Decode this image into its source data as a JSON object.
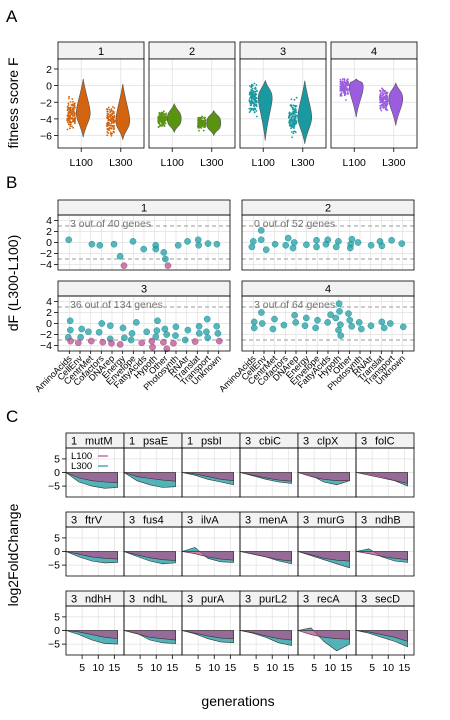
{
  "panel_labels": [
    "A",
    "B",
    "C"
  ],
  "colors": {
    "L100": "#b34d8a",
    "L300": "#1a9aa0",
    "cluster": [
      "#d2640f",
      "#5a9212",
      "#1a9aa0",
      "#9b5ce0"
    ],
    "strip_bg": "#f2f2f2",
    "grid": "#e0e0e0",
    "dashed": "#999999"
  },
  "chart_data": [
    {
      "type": "violin",
      "ylabel": "fitness score F",
      "x_categories": [
        "L100",
        "L300"
      ],
      "x_tick_labels": [
        "L100",
        "L300"
      ],
      "ylim": [
        -7.5,
        3.2
      ],
      "yticks": [
        2,
        0,
        -2,
        -4,
        -6
      ],
      "panels": [
        {
          "cluster": "1",
          "L100_median": -3.3,
          "L300_median": -4.2,
          "L100_range": [
            -6.2,
            0.8
          ],
          "L300_range": [
            -6.5,
            0.2
          ]
        },
        {
          "cluster": "2",
          "L100_median": -4.0,
          "L300_median": -4.5,
          "L100_range": [
            -5.6,
            -2.2
          ],
          "L300_range": [
            -6.0,
            -3.0
          ]
        },
        {
          "cluster": "3",
          "L100_median": -1.5,
          "L300_median": -3.8,
          "L100_range": [
            -6.6,
            0.6
          ],
          "L300_range": [
            -7.0,
            0.6
          ]
        },
        {
          "cluster": "4",
          "L100_median": -0.2,
          "L300_median": -1.6,
          "L100_range": [
            -3.8,
            0.8
          ],
          "L300_range": [
            -4.8,
            0.3
          ]
        }
      ]
    },
    {
      "type": "scatter",
      "ylabel": "dF (L300-L100)",
      "categories": [
        "AminoAcids",
        "CellEnv",
        "CentrMet",
        "Cofactors",
        "DNArep",
        "Energy",
        "Envelope",
        "FattyAcids",
        "Hypoth",
        "Other",
        "Photosynth",
        "RNAtr",
        "Translat",
        "Transport",
        "Unknown"
      ],
      "ylim": [
        -5,
        5
      ],
      "yticks": [
        4,
        2,
        0,
        -2,
        -4
      ],
      "threshold": [
        3,
        -3
      ],
      "panels": [
        {
          "cluster": "1",
          "annotation": "3 out of 40 genes",
          "points": [
            [
              0,
              0.5
            ],
            [
              2,
              -0.3
            ],
            [
              3,
              -0.5
            ],
            [
              4,
              -0.3
            ],
            [
              5,
              -2.5
            ],
            [
              5,
              -4.2
            ],
            [
              6,
              0.2
            ],
            [
              7,
              -1.2
            ],
            [
              8,
              -0.5
            ],
            [
              8,
              -1.2
            ],
            [
              9,
              -1.8
            ],
            [
              9,
              -3.0
            ],
            [
              9,
              -4.2
            ],
            [
              10,
              -0.5
            ],
            [
              11,
              0.2
            ],
            [
              12,
              0.5
            ],
            [
              12,
              -0.5
            ],
            [
              13,
              -0.2
            ],
            [
              14,
              -0.3
            ]
          ]
        },
        {
          "cluster": "2",
          "annotation": "0 out of 52 genes",
          "points": [
            [
              0,
              -0.8
            ],
            [
              0,
              0.2
            ],
            [
              1,
              2.2
            ],
            [
              1,
              -1.3
            ],
            [
              1,
              0.5
            ],
            [
              2,
              -0.3
            ],
            [
              3,
              0.8
            ],
            [
              3,
              -0.5
            ],
            [
              4,
              0.0
            ],
            [
              4,
              -1.0
            ],
            [
              5,
              -0.4
            ],
            [
              6,
              0.4
            ],
            [
              6,
              -0.8
            ],
            [
              7,
              -0.3
            ],
            [
              7,
              0.5
            ],
            [
              8,
              0.2
            ],
            [
              8,
              -0.8
            ],
            [
              9,
              0.6
            ],
            [
              9,
              -0.3
            ],
            [
              9,
              -1.0
            ],
            [
              10,
              0.0
            ],
            [
              11,
              -0.5
            ],
            [
              12,
              0.2
            ],
            [
              12,
              -0.6
            ],
            [
              13,
              0.4
            ],
            [
              14,
              -0.2
            ]
          ]
        },
        {
          "cluster": "3",
          "annotation": "36 out of 134 genes",
          "points": [
            [
              0,
              0.5
            ],
            [
              0,
              -1.2
            ],
            [
              0,
              -2.5
            ],
            [
              0,
              -3.2
            ],
            [
              1,
              -1.0
            ],
            [
              1,
              -2.5
            ],
            [
              1,
              -3.5
            ],
            [
              2,
              -1.5
            ],
            [
              2,
              -3.2
            ],
            [
              3,
              0.0
            ],
            [
              3,
              -1.6
            ],
            [
              3,
              -3.4
            ],
            [
              4,
              -0.4
            ],
            [
              4,
              -2.8
            ],
            [
              4,
              -3.6
            ],
            [
              5,
              -0.8
            ],
            [
              5,
              -2.6
            ],
            [
              5,
              -3.8
            ],
            [
              6,
              0.2
            ],
            [
              6,
              -1.8
            ],
            [
              6,
              -3.0
            ],
            [
              7,
              -1.5
            ],
            [
              7,
              -3.5
            ],
            [
              8,
              0.5
            ],
            [
              8,
              -1.3
            ],
            [
              8,
              -2.4
            ],
            [
              8,
              -3.2
            ],
            [
              8,
              -4.3
            ],
            [
              9,
              -1.0
            ],
            [
              9,
              -2.0
            ],
            [
              9,
              -3.4
            ],
            [
              9,
              -4.6
            ],
            [
              10,
              -0.6
            ],
            [
              10,
              -2.2
            ],
            [
              10,
              -3.6
            ],
            [
              11,
              -1.2
            ],
            [
              11,
              -3.0
            ],
            [
              12,
              -0.5
            ],
            [
              12,
              -1.8
            ],
            [
              12,
              -3.3
            ],
            [
              13,
              0.8
            ],
            [
              13,
              -1.5
            ],
            [
              13,
              -2.6
            ],
            [
              14,
              -0.5
            ],
            [
              14,
              -1.8
            ],
            [
              14,
              -3.2
            ]
          ]
        },
        {
          "cluster": "4",
          "annotation": "3 out of 64 genes",
          "points": [
            [
              0,
              0.3
            ],
            [
              0,
              -0.8
            ],
            [
              1,
              2.0
            ],
            [
              1,
              0.0
            ],
            [
              2,
              0.8
            ],
            [
              2,
              -1.0
            ],
            [
              3,
              -0.3
            ],
            [
              4,
              1.5
            ],
            [
              4,
              0.2
            ],
            [
              5,
              -0.4
            ],
            [
              5,
              1.0
            ],
            [
              6,
              -0.8
            ],
            [
              6,
              0.6
            ],
            [
              7,
              0.2
            ],
            [
              7,
              1.6
            ],
            [
              8,
              3.6
            ],
            [
              8,
              2.2
            ],
            [
              8,
              1.0
            ],
            [
              8,
              -0.2
            ],
            [
              8,
              -1.2
            ],
            [
              8,
              -2.2
            ],
            [
              9,
              0.6
            ],
            [
              9,
              1.8
            ],
            [
              9,
              -0.5
            ],
            [
              10,
              0.2
            ],
            [
              10,
              -1.0
            ],
            [
              11,
              -0.4
            ],
            [
              12,
              0.3
            ],
            [
              12,
              -0.8
            ],
            [
              13,
              0.0
            ],
            [
              14,
              -0.6
            ]
          ]
        }
      ]
    },
    {
      "type": "area",
      "xlabel": "generations",
      "ylabel": "log2FoldChange",
      "legend": [
        "L100",
        "L300"
      ],
      "xlim": [
        0,
        18
      ],
      "xticks": [
        5,
        10,
        15
      ],
      "ylim": [
        -9,
        9
      ],
      "yticks": [
        5,
        0,
        -5
      ],
      "panels": [
        {
          "cluster": "1",
          "gene": "mutM",
          "L100": [
            0,
            -2.0,
            -3.0,
            -3.5,
            -3.8
          ],
          "L300": [
            0,
            -3.5,
            -5.0,
            -5.8,
            -5.5
          ]
        },
        {
          "cluster": "1",
          "gene": "psaE",
          "L100": [
            0,
            -1.5,
            -2.2,
            -2.8,
            -3.2
          ],
          "L300": [
            0,
            -3.0,
            -4.5,
            -5.5,
            -5.2
          ]
        },
        {
          "cluster": "1",
          "gene": "psbI",
          "L100": [
            0,
            -0.5,
            -1.5,
            -2.5,
            -3.0
          ],
          "L300": [
            0,
            -1.0,
            -2.5,
            -3.5,
            -4.5
          ]
        },
        {
          "cluster": "3",
          "gene": "cbiC",
          "L100": [
            0,
            -1.0,
            -2.0,
            -2.8,
            -3.2
          ],
          "L300": [
            0,
            -1.2,
            -2.5,
            -3.5,
            -4.0
          ]
        },
        {
          "cluster": "3",
          "gene": "clpX",
          "L100": [
            0,
            -1.5,
            -2.5,
            -3.0,
            -3.0
          ],
          "L300": [
            0,
            -1.0,
            -3.5,
            -4.5,
            -3.0
          ]
        },
        {
          "cluster": "3",
          "gene": "folC",
          "L100": [
            0,
            -1.0,
            -2.0,
            -3.0,
            -4.0
          ],
          "L300": [
            0,
            -0.5,
            -1.5,
            -3.0,
            -5.0
          ]
        },
        {
          "cluster": "3",
          "gene": "ftrV",
          "L100": [
            0,
            -1.0,
            -2.0,
            -2.5,
            -2.8
          ],
          "L300": [
            0,
            -2.0,
            -3.5,
            -4.2,
            -4.0
          ]
        },
        {
          "cluster": "3",
          "gene": "fus4",
          "L100": [
            0,
            -1.2,
            -2.3,
            -3.0,
            -3.3
          ],
          "L300": [
            0,
            -1.8,
            -3.5,
            -4.5,
            -4.2
          ]
        },
        {
          "cluster": "3",
          "gene": "ilvA",
          "L100": [
            0,
            -0.8,
            -2.0,
            -2.8,
            -3.2
          ],
          "L300": [
            0,
            1.5,
            -2.5,
            -3.8,
            -4.0
          ]
        },
        {
          "cluster": "3",
          "gene": "menA",
          "L100": [
            0,
            -1.0,
            -2.0,
            -3.0,
            -3.5
          ],
          "L300": [
            0,
            -0.8,
            -2.0,
            -3.5,
            -4.5
          ]
        },
        {
          "cluster": "3",
          "gene": "murG",
          "L100": [
            0,
            -1.2,
            -2.5,
            -3.2,
            -3.5
          ],
          "L300": [
            0,
            -1.5,
            -3.0,
            -4.5,
            -6.0
          ]
        },
        {
          "cluster": "3",
          "gene": "ndhB",
          "L100": [
            0,
            -0.8,
            -1.8,
            -2.5,
            -3.0
          ],
          "L300": [
            0,
            1.0,
            -2.0,
            -3.5,
            -4.0
          ]
        },
        {
          "cluster": "3",
          "gene": "ndhH",
          "L100": [
            0,
            -0.5,
            -1.5,
            -2.5,
            -3.0
          ],
          "L300": [
            0,
            -1.5,
            -3.5,
            -4.8,
            -5.0
          ]
        },
        {
          "cluster": "3",
          "gene": "ndhL",
          "L100": [
            0,
            -1.2,
            -2.5,
            -3.0,
            -3.5
          ],
          "L300": [
            0,
            -1.0,
            -3.5,
            -4.5,
            -4.8
          ]
        },
        {
          "cluster": "3",
          "gene": "purA",
          "L100": [
            0,
            -1.0,
            -2.0,
            -2.8,
            -3.0
          ],
          "L300": [
            0,
            -1.2,
            -3.0,
            -4.2,
            -4.5
          ]
        },
        {
          "cluster": "3",
          "gene": "purL2",
          "L100": [
            0,
            -0.8,
            -2.0,
            -3.0,
            -3.5
          ],
          "L300": [
            0,
            -1.0,
            -2.5,
            -4.5,
            -5.5
          ]
        },
        {
          "cluster": "3",
          "gene": "recA",
          "L100": [
            0,
            -1.5,
            -2.5,
            -3.0,
            -3.2
          ],
          "L300": [
            0,
            1.0,
            -4.0,
            -7.5,
            -5.0
          ]
        },
        {
          "cluster": "3",
          "gene": "secD",
          "L100": [
            0,
            -0.5,
            -1.5,
            -2.5,
            -4.0
          ],
          "L300": [
            0,
            -1.0,
            -2.5,
            -4.0,
            -6.0
          ]
        }
      ],
      "x": [
        0,
        4,
        8,
        12,
        16
      ]
    }
  ]
}
